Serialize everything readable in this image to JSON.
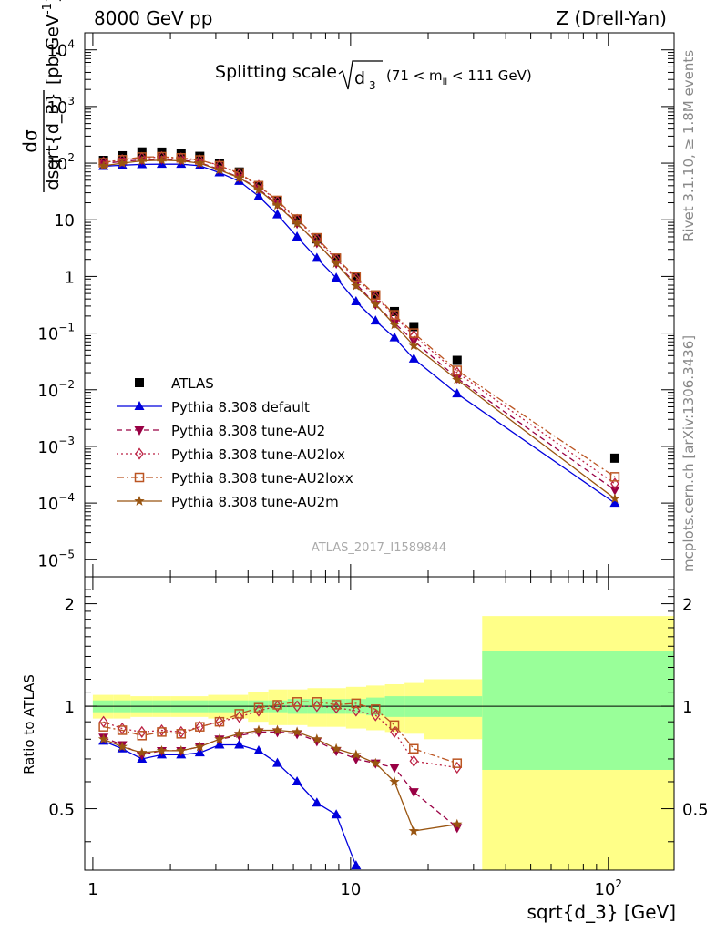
{
  "header": {
    "left": "8000 GeV pp",
    "right": "Z (Drell-Yan)"
  },
  "side_labels": {
    "rivet": "Rivet 3.1.10, ≥ 1.8M events",
    "mcplots": "mcplots.cern.ch [arXiv:1306.3436]"
  },
  "watermark": "ATLAS_2017_I1589844",
  "chart_data": [
    {
      "type": "scatter",
      "title": "Splitting scale",
      "title_symbol": "d",
      "title_index": "3",
      "title_cut": "(71 < m",
      "title_cut_index": "ll",
      "title_cut_end": " < 111 GeV)",
      "ylabel_num": "dσ",
      "ylabel_den": "dsqrt{d_3}",
      "ylabel_units": "[pb,GeV",
      "ylabel_units_exp": "-1",
      "ylabel_units_end": "]",
      "xscale": "log",
      "yscale": "log",
      "xlim": [
        0.93,
        180
      ],
      "ylim": [
        5e-06,
        20000
      ],
      "yticks": [
        {
          "v": 10000,
          "base": "10",
          "exp": "4"
        },
        {
          "v": 1000,
          "base": "10",
          "exp": "3"
        },
        {
          "v": 100,
          "base": "10",
          "exp": "2"
        },
        {
          "v": 10,
          "base": "10",
          "exp": ""
        },
        {
          "v": 1,
          "base": "1",
          "exp": ""
        },
        {
          "v": 0.1,
          "base": "10",
          "exp": "−1"
        },
        {
          "v": 0.01,
          "base": "10",
          "exp": "−2"
        },
        {
          "v": 0.001,
          "base": "10",
          "exp": "−3"
        },
        {
          "v": 0.0001,
          "base": "10",
          "exp": "−4"
        },
        {
          "v": 1e-05,
          "base": "10",
          "exp": "−5"
        }
      ],
      "legend_position": "bottom-left",
      "series": [
        {
          "name": "ATLAS",
          "style": "data",
          "color": "#000000",
          "marker": "square",
          "x": [
            1.1,
            1.3,
            1.55,
            1.85,
            2.2,
            2.6,
            3.1,
            3.7,
            4.4,
            5.2,
            6.2,
            7.4,
            8.8,
            10.5,
            12.5,
            14.8,
            17.6,
            25.9,
            106
          ],
          "y": [
            112,
            135,
            158,
            157,
            150,
            132,
            100,
            70,
            40,
            21.5,
            10,
            4.6,
            2.1,
            0.94,
            0.47,
            0.24,
            0.13,
            0.033,
            0.00062
          ]
        },
        {
          "name": "Pythia 8.308 default",
          "color": "#0000dd",
          "dash": "",
          "marker": "triangle-up",
          "x": [
            1.1,
            1.3,
            1.55,
            1.85,
            2.2,
            2.6,
            3.1,
            3.7,
            4.4,
            5.2,
            6.2,
            7.4,
            8.8,
            10.5,
            12.5,
            14.8,
            17.6,
            25.9,
            106
          ],
          "y": [
            88,
            92,
            95,
            96,
            96,
            90,
            68,
            48,
            26,
            12.3,
            5,
            2.1,
            0.94,
            0.36,
            0.165,
            0.083,
            0.035,
            0.0085,
            0.0001
          ]
        },
        {
          "name": "Pythia 8.308 tune-AU2",
          "color": "#990044",
          "dash": "6,4",
          "marker": "triangle-down",
          "x": [
            1.1,
            1.3,
            1.55,
            1.85,
            2.2,
            2.6,
            3.1,
            3.7,
            4.4,
            5.2,
            6.2,
            7.4,
            8.8,
            10.5,
            12.5,
            14.8,
            17.6,
            25.9,
            106
          ],
          "y": [
            98,
            108,
            114,
            117,
            114,
            102,
            78,
            56,
            35,
            19,
            8.6,
            3.9,
            1.7,
            0.74,
            0.32,
            0.15,
            0.073,
            0.016,
            0.00017
          ]
        },
        {
          "name": "Pythia 8.308 tune-AU2lox",
          "color": "#bb2244",
          "dash": "2,3",
          "marker": "diamond-open",
          "x": [
            1.1,
            1.3,
            1.55,
            1.85,
            2.2,
            2.6,
            3.1,
            3.7,
            4.4,
            5.2,
            6.2,
            7.4,
            8.8,
            10.5,
            12.5,
            14.8,
            17.6,
            25.9,
            106
          ],
          "y": [
            104,
            114,
            124,
            128,
            122,
            112,
            92,
            64,
            40,
            21,
            10,
            4.5,
            2.0,
            0.92,
            0.44,
            0.2,
            0.09,
            0.02,
            0.00022
          ]
        },
        {
          "name": "Pythia 8.308 tune-AU2loxx",
          "color": "#bb5522",
          "dash": "8,3,2,3",
          "marker": "square-open",
          "x": [
            1.1,
            1.3,
            1.55,
            1.85,
            2.2,
            2.6,
            3.1,
            3.7,
            4.4,
            5.2,
            6.2,
            7.4,
            8.8,
            10.5,
            12.5,
            14.8,
            17.6,
            25.9,
            106
          ],
          "y": [
            102,
            115,
            128,
            130,
            124,
            114,
            90,
            67,
            40,
            22,
            10.3,
            4.8,
            2.1,
            0.98,
            0.47,
            0.21,
            0.1,
            0.022,
            0.00029
          ]
        },
        {
          "name": "Pythia 8.308 tune-AU2m",
          "color": "#995511",
          "dash": "",
          "marker": "star",
          "x": [
            1.1,
            1.3,
            1.55,
            1.85,
            2.2,
            2.6,
            3.1,
            3.7,
            4.4,
            5.2,
            6.2,
            7.4,
            8.8,
            10.5,
            12.5,
            14.8,
            17.6,
            25.9,
            106
          ],
          "y": [
            90,
            100,
            110,
            113,
            110,
            100,
            76,
            55,
            34,
            18,
            8.6,
            3.9,
            1.7,
            0.68,
            0.32,
            0.14,
            0.06,
            0.015,
            0.00012
          ]
        }
      ]
    },
    {
      "type": "scatter",
      "ylabel": "Ratio to ATLAS",
      "xlabel": "sqrt{d_3} [GeV]",
      "xscale": "log",
      "xlim": [
        0.93,
        180
      ],
      "ylim": [
        0.33,
        2.4
      ],
      "yticks": [
        {
          "v": 0.5,
          "label": "0.5"
        },
        {
          "v": 1,
          "label": "1"
        },
        {
          "v": 2,
          "label": "2"
        }
      ],
      "xticks": [
        {
          "v": 1,
          "base": "1",
          "exp": ""
        },
        {
          "v": 10,
          "base": "10",
          "exp": ""
        },
        {
          "v": 100,
          "base": "10",
          "exp": "2"
        }
      ],
      "uncertainty_bands": {
        "edges": [
          1,
          1.2,
          1.4,
          1.7,
          2.0,
          2.4,
          2.8,
          3.4,
          4.0,
          4.8,
          5.7,
          6.8,
          8.1,
          9.6,
          11.5,
          13.6,
          16.2,
          19.2,
          32.4,
          180
        ],
        "stat_lo": [
          0.96,
          0.96,
          0.96,
          0.96,
          0.96,
          0.96,
          0.96,
          0.96,
          0.96,
          0.96,
          0.95,
          0.95,
          0.95,
          0.95,
          0.94,
          0.93,
          0.93,
          0.93,
          0.65
        ],
        "stat_hi": [
          1.04,
          1.04,
          1.04,
          1.04,
          1.04,
          1.04,
          1.04,
          1.04,
          1.04,
          1.04,
          1.05,
          1.05,
          1.05,
          1.05,
          1.06,
          1.07,
          1.07,
          1.07,
          1.45
        ],
        "tot_lo": [
          0.92,
          0.92,
          0.93,
          0.93,
          0.93,
          0.93,
          0.92,
          0.92,
          0.9,
          0.88,
          0.88,
          0.87,
          0.87,
          0.86,
          0.85,
          0.84,
          0.83,
          0.8,
          0.33
        ],
        "tot_hi": [
          1.08,
          1.08,
          1.07,
          1.07,
          1.07,
          1.07,
          1.08,
          1.08,
          1.1,
          1.12,
          1.12,
          1.13,
          1.13,
          1.14,
          1.15,
          1.16,
          1.17,
          1.2,
          1.84
        ],
        "stat_color": "#99ff99",
        "total_color": "#ffff88"
      },
      "series": [
        {
          "name": "Pythia 8.308 default",
          "color": "#0000dd",
          "dash": "",
          "marker": "triangle-up",
          "x": [
            1.1,
            1.3,
            1.55,
            1.85,
            2.2,
            2.6,
            3.1,
            3.7,
            4.4,
            5.2,
            6.2,
            7.4,
            8.8,
            10.5
          ],
          "y": [
            0.79,
            0.75,
            0.7,
            0.72,
            0.72,
            0.73,
            0.77,
            0.77,
            0.74,
            0.68,
            0.6,
            0.52,
            0.48,
            0.34
          ]
        },
        {
          "name": "Pythia 8.308 tune-AU2",
          "color": "#990044",
          "dash": "6,4",
          "marker": "triangle-down",
          "x": [
            1.1,
            1.3,
            1.55,
            1.85,
            2.2,
            2.6,
            3.1,
            3.7,
            4.4,
            5.2,
            6.2,
            7.4,
            8.8,
            10.5,
            12.5,
            14.8,
            17.6,
            25.9
          ],
          "y": [
            0.81,
            0.77,
            0.72,
            0.74,
            0.74,
            0.76,
            0.8,
            0.82,
            0.84,
            0.84,
            0.83,
            0.79,
            0.74,
            0.7,
            0.68,
            0.66,
            0.56,
            0.44
          ]
        },
        {
          "name": "Pythia 8.308 tune-AU2lox",
          "color": "#bb2244",
          "dash": "2,3",
          "marker": "diamond-open",
          "x": [
            1.1,
            1.3,
            1.55,
            1.85,
            2.2,
            2.6,
            3.1,
            3.7,
            4.4,
            5.2,
            6.2,
            7.4,
            8.8,
            10.5,
            12.5,
            14.8,
            17.6,
            25.9
          ],
          "y": [
            0.9,
            0.86,
            0.84,
            0.85,
            0.84,
            0.87,
            0.9,
            0.93,
            0.97,
            1.0,
            1.0,
            1.0,
            0.99,
            0.97,
            0.94,
            0.84,
            0.69,
            0.66
          ]
        },
        {
          "name": "Pythia 8.308 tune-AU2loxx",
          "color": "#bb5522",
          "dash": "8,3,2,3",
          "marker": "square-open",
          "x": [
            1.1,
            1.3,
            1.55,
            1.85,
            2.2,
            2.6,
            3.1,
            3.7,
            4.4,
            5.2,
            6.2,
            7.4,
            8.8,
            10.5,
            12.5,
            14.8,
            17.6,
            25.9
          ],
          "y": [
            0.87,
            0.85,
            0.82,
            0.84,
            0.83,
            0.87,
            0.9,
            0.95,
            0.99,
            1.01,
            1.03,
            1.03,
            1.01,
            1.02,
            0.98,
            0.88,
            0.75,
            0.68
          ]
        },
        {
          "name": "Pythia 8.308 tune-AU2m",
          "color": "#995511",
          "dash": "",
          "marker": "star",
          "x": [
            1.1,
            1.3,
            1.55,
            1.85,
            2.2,
            2.6,
            3.1,
            3.7,
            4.4,
            5.2,
            6.2,
            7.4,
            8.8,
            10.5,
            12.5,
            14.8,
            17.6,
            25.9
          ],
          "y": [
            0.8,
            0.76,
            0.73,
            0.74,
            0.74,
            0.76,
            0.8,
            0.83,
            0.85,
            0.85,
            0.84,
            0.8,
            0.75,
            0.72,
            0.68,
            0.6,
            0.43,
            0.45
          ]
        }
      ]
    }
  ]
}
